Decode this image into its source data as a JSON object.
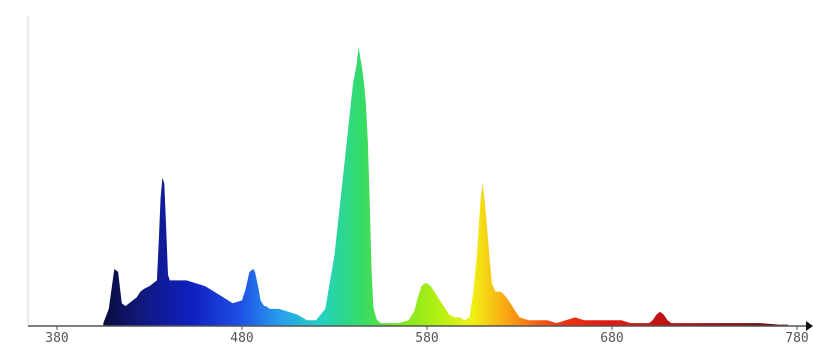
{
  "chart_data": {
    "type": "area",
    "title": "",
    "xlabel": "",
    "ylabel": "",
    "xlim": [
      380,
      780
    ],
    "ylim": [
      0,
      1
    ],
    "grid": false,
    "x_ticks": [
      "380",
      "480",
      "580",
      "680",
      "780"
    ],
    "x": [
      405,
      408,
      411,
      413,
      415,
      417,
      419,
      421,
      423,
      425,
      427,
      430,
      432,
      434,
      435,
      436,
      437,
      438,
      439,
      440,
      441,
      442,
      444,
      446,
      450,
      455,
      460,
      465,
      470,
      475,
      480,
      482,
      484,
      486,
      487,
      488,
      489,
      490,
      491,
      492,
      493,
      495,
      497,
      500,
      505,
      510,
      515,
      520,
      525,
      530,
      535,
      540,
      542,
      543,
      544,
      545,
      546,
      547,
      548,
      549,
      550,
      551,
      552,
      553,
      555,
      557,
      560,
      565,
      570,
      573,
      575,
      577,
      579,
      580,
      582,
      584,
      586,
      588,
      590,
      592,
      595,
      598,
      600,
      603,
      605,
      607,
      608,
      609,
      610,
      611,
      612,
      613,
      615,
      617,
      620,
      623,
      625,
      627,
      630,
      635,
      640,
      645,
      650,
      655,
      660,
      665,
      670,
      675,
      680,
      685,
      690,
      695,
      700,
      702,
      704,
      706,
      708,
      710,
      712,
      715,
      720,
      730,
      740,
      750,
      760,
      770,
      775
    ],
    "y": [
      0.01,
      0.06,
      0.2,
      0.19,
      0.08,
      0.07,
      0.08,
      0.09,
      0.1,
      0.12,
      0.13,
      0.14,
      0.15,
      0.16,
      0.3,
      0.45,
      0.52,
      0.5,
      0.35,
      0.18,
      0.16,
      0.16,
      0.16,
      0.16,
      0.16,
      0.15,
      0.14,
      0.12,
      0.1,
      0.08,
      0.09,
      0.13,
      0.19,
      0.2,
      0.19,
      0.16,
      0.13,
      0.09,
      0.08,
      0.07,
      0.07,
      0.06,
      0.06,
      0.06,
      0.05,
      0.04,
      0.02,
      0.02,
      0.06,
      0.25,
      0.55,
      0.85,
      0.92,
      0.98,
      0.94,
      0.9,
      0.85,
      0.78,
      0.65,
      0.45,
      0.2,
      0.07,
      0.04,
      0.02,
      0.01,
      0.01,
      0.01,
      0.01,
      0.02,
      0.05,
      0.1,
      0.14,
      0.15,
      0.15,
      0.14,
      0.12,
      0.1,
      0.08,
      0.06,
      0.04,
      0.03,
      0.03,
      0.02,
      0.03,
      0.12,
      0.25,
      0.35,
      0.45,
      0.5,
      0.45,
      0.38,
      0.3,
      0.15,
      0.12,
      0.12,
      0.1,
      0.08,
      0.06,
      0.03,
      0.02,
      0.02,
      0.02,
      0.01,
      0.02,
      0.03,
      0.02,
      0.02,
      0.02,
      0.02,
      0.02,
      0.01,
      0.01,
      0.01,
      0.02,
      0.04,
      0.05,
      0.04,
      0.02,
      0.01,
      0.01,
      0.01,
      0.01,
      0.01,
      0.01,
      0.01,
      0.005,
      0.005
    ]
  }
}
